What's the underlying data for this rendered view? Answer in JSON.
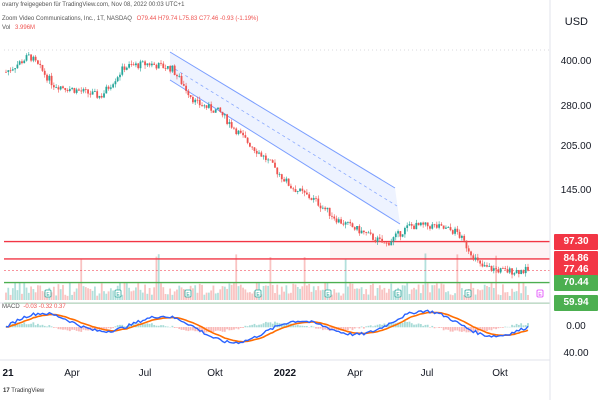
{
  "credit": "ovarry freigegeben für TradingView.com, Nov 08, 2022 00:03 UTC+1",
  "title": "Zoom Video Communications, Inc., 1T, NASDAQ",
  "ohlc": "O79.44 H79.74 L75.83 C77.46 -0.93 (-1.19%)",
  "volume": {
    "label": "Vol",
    "value": "3.996M"
  },
  "currency": "USD",
  "price_axis": [
    "400.00",
    "280.00",
    "205.00",
    "145.00",
    "40.00"
  ],
  "badges": [
    {
      "value": "97.30",
      "color": "#f23645"
    },
    {
      "value": "84.86",
      "color": "#f23645"
    },
    {
      "value": "77.46",
      "color": "#f23645"
    },
    {
      "value": "70.44",
      "color": "#4caf50"
    },
    {
      "value": "59.94",
      "color": "#4caf50"
    }
  ],
  "macd": {
    "label": "MACD",
    "params": "-0.03 -0.32 0.37",
    "axis": "0.00"
  },
  "time_axis": [
    {
      "label": "21",
      "bold": true
    },
    {
      "label": "Apr",
      "bold": false
    },
    {
      "label": "Jul",
      "bold": false
    },
    {
      "label": "Okt",
      "bold": false
    },
    {
      "label": "2022",
      "bold": true
    },
    {
      "label": "Apr",
      "bold": false
    },
    {
      "label": "Jul",
      "bold": false
    },
    {
      "label": "Okt",
      "bold": false
    }
  ],
  "earnings_marker": "E",
  "logo": "TradingView",
  "colors": {
    "up": "#26a69a",
    "down": "#ef5350",
    "channel": "#2962ff",
    "resistance": "#f23645",
    "support": "#4caf50",
    "macd_line": "#2962ff",
    "signal_line": "#ff6d00"
  },
  "chart_data": {
    "type": "candlestick",
    "instrument": "Zoom Video Communications, Inc.",
    "interval": "1T",
    "scale": "log",
    "y_ticks": [
      400,
      280,
      205,
      145,
      40
    ],
    "horizontal_levels": [
      97.3,
      84.86,
      70.44,
      59.94
    ],
    "last_price": 77.46,
    "approx_close_path": [
      [
        "2021-01",
        370
      ],
      [
        "2021-02",
        420
      ],
      [
        "2021-03",
        335
      ],
      [
        "2021-04",
        320
      ],
      [
        "2021-05",
        305
      ],
      [
        "2021-06",
        385
      ],
      [
        "2021-07",
        395
      ],
      [
        "2021-08",
        380
      ],
      [
        "2021-09",
        290
      ],
      [
        "2021-10",
        270
      ],
      [
        "2021-11",
        220
      ],
      [
        "2021-12",
        185
      ],
      [
        "2022-01",
        150
      ],
      [
        "2022-02",
        135
      ],
      [
        "2022-03",
        115
      ],
      [
        "2022-04",
        105
      ],
      [
        "2022-05",
        95
      ],
      [
        "2022-06",
        110
      ],
      [
        "2022-07",
        110
      ],
      [
        "2022-08",
        105
      ],
      [
        "2022-09",
        80
      ],
      [
        "2022-10",
        77
      ],
      [
        "2022-11",
        77.46
      ]
    ],
    "series": [
      {
        "name": "MACD"
      }
    ],
    "grid": false
  }
}
